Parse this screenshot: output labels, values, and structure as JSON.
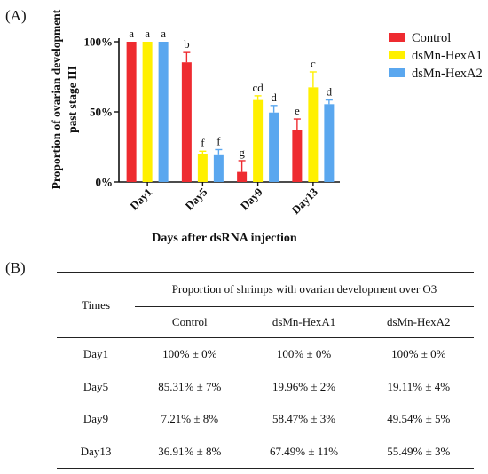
{
  "panel_a_label": "(A)",
  "panel_b_label": "(B)",
  "chart_data": {
    "type": "bar",
    "title": "",
    "xlabel": "Days after dsRNA injection",
    "ylabel": "Proportion of ovarian development past stage III",
    "ylabel_lines": [
      "Proportion of ovarian development",
      "past stage III"
    ],
    "ylim": [
      0,
      100
    ],
    "yticks": [
      "0%",
      "50%",
      "100%"
    ],
    "categories": [
      "Day1",
      "Day5",
      "Day9",
      "Day13"
    ],
    "legend_position": "top-right",
    "grid": false,
    "series": [
      {
        "name": "Control",
        "color": "#ee2b30",
        "values": [
          100,
          85.31,
          7.21,
          36.91
        ],
        "errors": [
          0,
          7,
          8,
          8
        ],
        "letters": [
          "a",
          "b",
          "g",
          "e"
        ]
      },
      {
        "name": "dsMn-HexA1",
        "color": "#fff000",
        "values": [
          100,
          19.96,
          58.47,
          67.49
        ],
        "errors": [
          0,
          2,
          3,
          11
        ],
        "letters": [
          "a",
          "f",
          "cd",
          "c"
        ]
      },
      {
        "name": "dsMn-HexA2",
        "color": "#5aa7ef",
        "values": [
          100,
          19.11,
          49.54,
          55.49
        ],
        "errors": [
          0,
          4,
          5,
          3
        ],
        "letters": [
          "a",
          "f",
          "d",
          "d"
        ]
      }
    ]
  },
  "table": {
    "times_header": "Times",
    "group_header": "Proportion of shrimps with ovarian development over O3",
    "columns": [
      "Control",
      "dsMn-HexA1",
      "dsMn-HexA2"
    ],
    "rows": [
      {
        "time": "Day1",
        "cells": [
          "100%  ±  0%",
          "100%  ±  0%",
          "100%  ±  0%"
        ]
      },
      {
        "time": "Day5",
        "cells": [
          "85.31%  ±  7%",
          "19.96%  ±  2%",
          "19.11%  ±  4%"
        ]
      },
      {
        "time": "Day9",
        "cells": [
          "7.21%  ±  8%",
          "58.47%  ±  3%",
          "49.54%  ±  5%"
        ]
      },
      {
        "time": "Day13",
        "cells": [
          "36.91%  ±  8%",
          "67.49%  ±  11%",
          "55.49%  ±  3%"
        ]
      }
    ]
  }
}
